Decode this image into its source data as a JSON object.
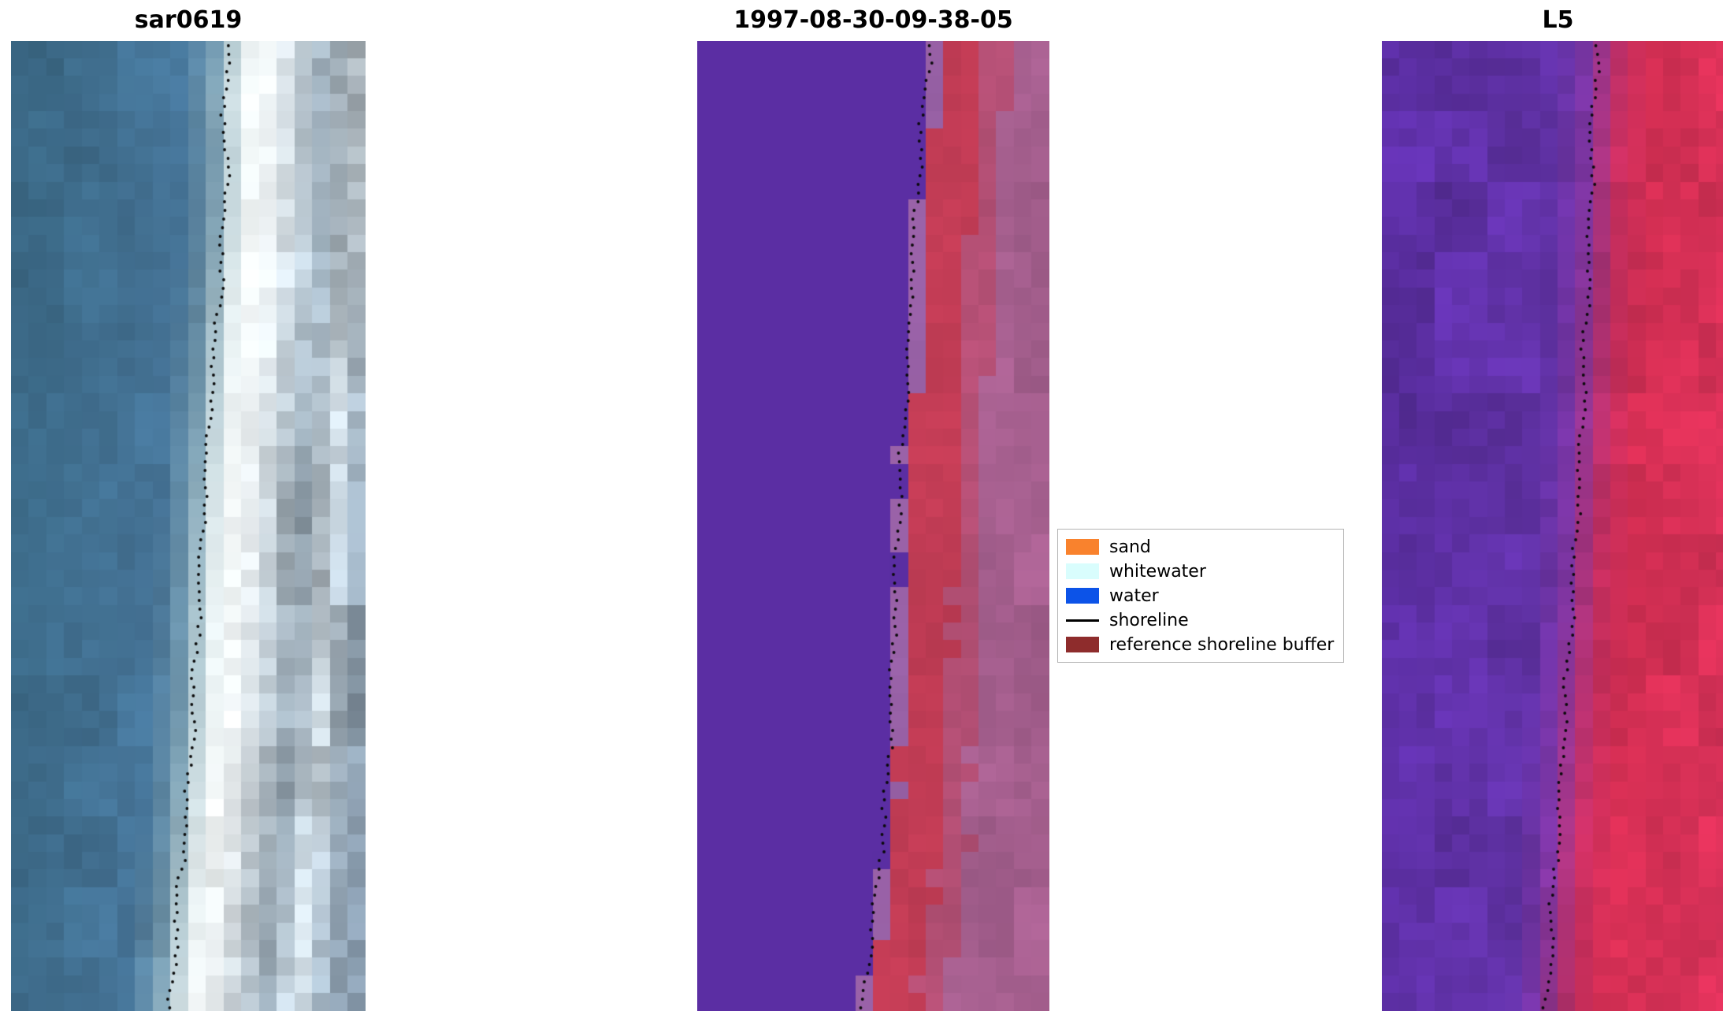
{
  "figure": {
    "background": "#ffffff"
  },
  "panels": [
    {
      "title": "sar0619",
      "render": {
        "cols": 20,
        "rows": 55,
        "smooth": true,
        "stops": [
          [
            0,
            "#3c6a88"
          ],
          [
            0.38,
            "#47769a"
          ],
          [
            0.46,
            "#6d93a9"
          ],
          [
            0.5,
            "#a9c2cb"
          ],
          [
            0.54,
            "#e2ecee"
          ],
          [
            0.58,
            "#f3f7f7"
          ],
          [
            0.64,
            "#e8eef1"
          ],
          [
            0.7,
            "#c2ced6"
          ],
          [
            0.78,
            "#98a9b6"
          ],
          [
            0.86,
            "#c5d0d7"
          ],
          [
            0.93,
            "#93a4b2"
          ],
          [
            1,
            "#8092a3"
          ]
        ],
        "noise": [
          [
            0,
            0.05
          ],
          [
            0.44,
            0.05
          ],
          [
            0.52,
            0.02
          ],
          [
            0.62,
            0.06
          ],
          [
            0.75,
            0.12
          ],
          [
            1,
            0.13
          ]
        ],
        "shoreline": [
          [
            0,
            0.615
          ],
          [
            0.06,
            0.6
          ],
          [
            0.12,
            0.608
          ],
          [
            0.2,
            0.6
          ],
          [
            0.3,
            0.578
          ],
          [
            0.4,
            0.557
          ],
          [
            0.5,
            0.54
          ],
          [
            0.6,
            0.527
          ],
          [
            0.7,
            0.513
          ],
          [
            0.8,
            0.495
          ],
          [
            0.9,
            0.468
          ],
          [
            1,
            0.448
          ]
        ],
        "dot_color": "#0a0a0a"
      }
    },
    {
      "title": "1997-08-30-09-38-05",
      "render": {
        "cols": 20,
        "rows": 55,
        "smooth": false,
        "bands": [
          [
            -1,
            "#5b2ea3"
          ],
          [
            0.502,
            "#9a62a8"
          ],
          [
            0.532,
            "#c23c55"
          ],
          [
            0.66,
            "#b34f74"
          ],
          [
            0.74,
            "#a55f8e"
          ]
        ],
        "noise": [
          [
            0,
            0
          ],
          [
            0.5,
            0
          ],
          [
            0.54,
            0.03
          ],
          [
            1,
            0.05
          ]
        ],
        "edge_jitter": 0.02,
        "shoreline": [
          [
            0,
            0.662
          ],
          [
            0.08,
            0.64
          ],
          [
            0.16,
            0.623
          ],
          [
            0.25,
            0.608
          ],
          [
            0.35,
            0.595
          ],
          [
            0.45,
            0.578
          ],
          [
            0.55,
            0.563
          ],
          [
            0.65,
            0.553
          ],
          [
            0.75,
            0.543
          ],
          [
            0.85,
            0.517
          ],
          [
            0.93,
            0.49
          ],
          [
            1,
            0.47
          ]
        ],
        "dot_color": "#0a0a0a"
      }
    },
    {
      "title": "L5",
      "render": {
        "cols": 20,
        "rows": 55,
        "smooth": true,
        "stops": [
          [
            0,
            "#5c2fa4"
          ],
          [
            0.4,
            "#6132a6"
          ],
          [
            0.48,
            "#7c35a2"
          ],
          [
            0.53,
            "#a8337e"
          ],
          [
            0.58,
            "#c92f60"
          ],
          [
            0.66,
            "#d62f54"
          ],
          [
            1,
            "#d73158"
          ]
        ],
        "noise": [
          [
            0,
            0.08
          ],
          [
            0.45,
            0.06
          ],
          [
            0.55,
            0.05
          ],
          [
            1,
            0.055
          ]
        ],
        "shoreline": [
          [
            0,
            0.612
          ],
          [
            0.1,
            0.598
          ],
          [
            0.2,
            0.59
          ],
          [
            0.3,
            0.578
          ],
          [
            0.4,
            0.568
          ],
          [
            0.5,
            0.552
          ],
          [
            0.6,
            0.538
          ],
          [
            0.7,
            0.52
          ],
          [
            0.8,
            0.503
          ],
          [
            0.9,
            0.483
          ],
          [
            1,
            0.468
          ]
        ],
        "dot_color": "#0a0a0a"
      }
    }
  ],
  "legend": {
    "items": [
      {
        "label": "sand",
        "swatch": "patch",
        "color": "#f9822d"
      },
      {
        "label": "whitewater",
        "swatch": "patch",
        "color": "#d9fdfd"
      },
      {
        "label": "water",
        "swatch": "patch",
        "color": "#0c53e8"
      },
      {
        "label": "shoreline",
        "swatch": "line",
        "color": "#000000"
      },
      {
        "label": "reference shoreline buffer",
        "swatch": "patch",
        "color": "#8e2c2c"
      }
    ]
  },
  "chart_data": {
    "type": "heatmap",
    "title": "",
    "panels": [
      {
        "title": "sar0619",
        "content": "SAR image crop: blue-gray water on left, bright white sand/whitewater band, mottled gray-blue land on right, black dotted shoreline overlay running top to bottom"
      },
      {
        "title": "1997-08-30-09-38-05",
        "content": "classified image: flat purple water region on left, red reference shoreline buffer band along the coast, mauve land on right, black dotted shoreline overlay"
      },
      {
        "title": "L5",
        "content": "Landsat 5 false-color crop: noisy purple water on left, crimson-red land on right, black dotted shoreline overlay"
      }
    ],
    "legend_entries": [
      "sand",
      "whitewater",
      "water",
      "shoreline",
      "reference shoreline buffer"
    ]
  }
}
